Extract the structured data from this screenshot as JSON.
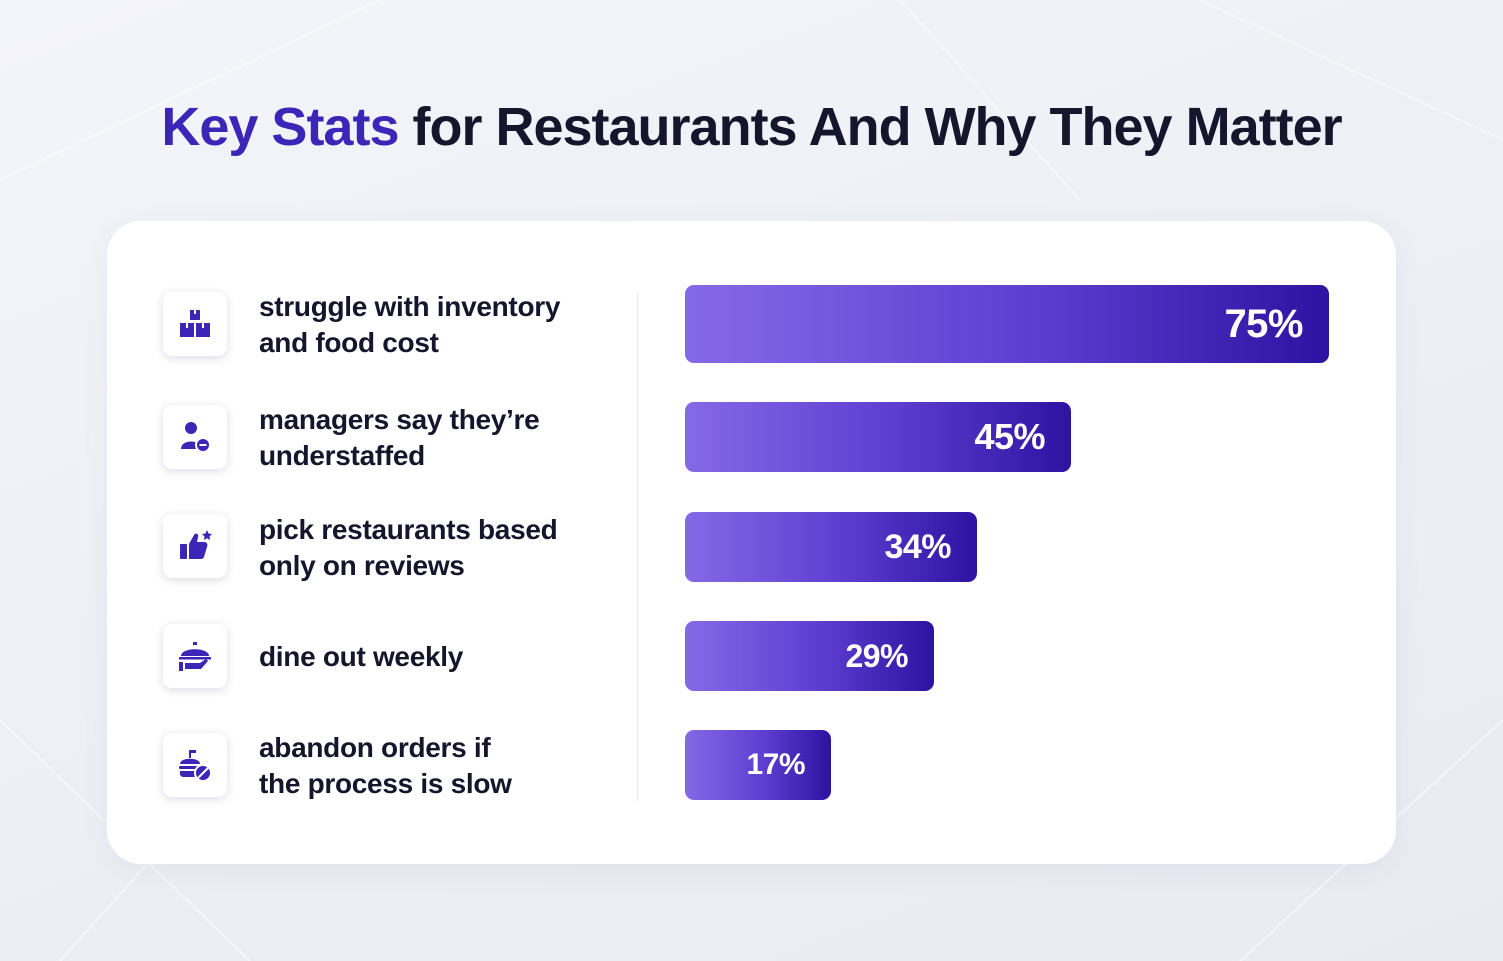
{
  "title": {
    "accent": "Key Stats",
    "rest": "for Restaurants And Why They Matter"
  },
  "colors": {
    "accent": "#3b26b8",
    "bar_start": "#8669e6",
    "bar_end": "#2d13a1",
    "text": "#15152b"
  },
  "chart_data": {
    "type": "bar",
    "orientation": "horizontal",
    "title": "Key Stats for Restaurants And Why They Matter",
    "unit": "%",
    "xlim": [
      0,
      100
    ],
    "categories": [
      "struggle with inventory and food cost",
      "managers say they’re understaffed",
      "pick restaurants based only on reviews",
      "dine out weekly",
      "abandon orders if the process is slow"
    ],
    "values": [
      75,
      45,
      34,
      29,
      17
    ],
    "value_labels": [
      "75%",
      "45%",
      "34%",
      "29%",
      "17%"
    ]
  },
  "stats": [
    {
      "icon": "inventory-boxes-icon",
      "line1": "struggle with inventory",
      "line2": "and food cost"
    },
    {
      "icon": "understaffed-person-icon",
      "line1": "managers say they’re",
      "line2": "understaffed"
    },
    {
      "icon": "thumbs-up-review-icon",
      "line1": "pick restaurants based",
      "line2": "only on reviews"
    },
    {
      "icon": "serving-cloche-icon",
      "line1": "dine out weekly",
      "line2": ""
    },
    {
      "icon": "food-order-cancel-icon",
      "line1": "abandon orders if",
      "line2": "the process is slow"
    }
  ]
}
